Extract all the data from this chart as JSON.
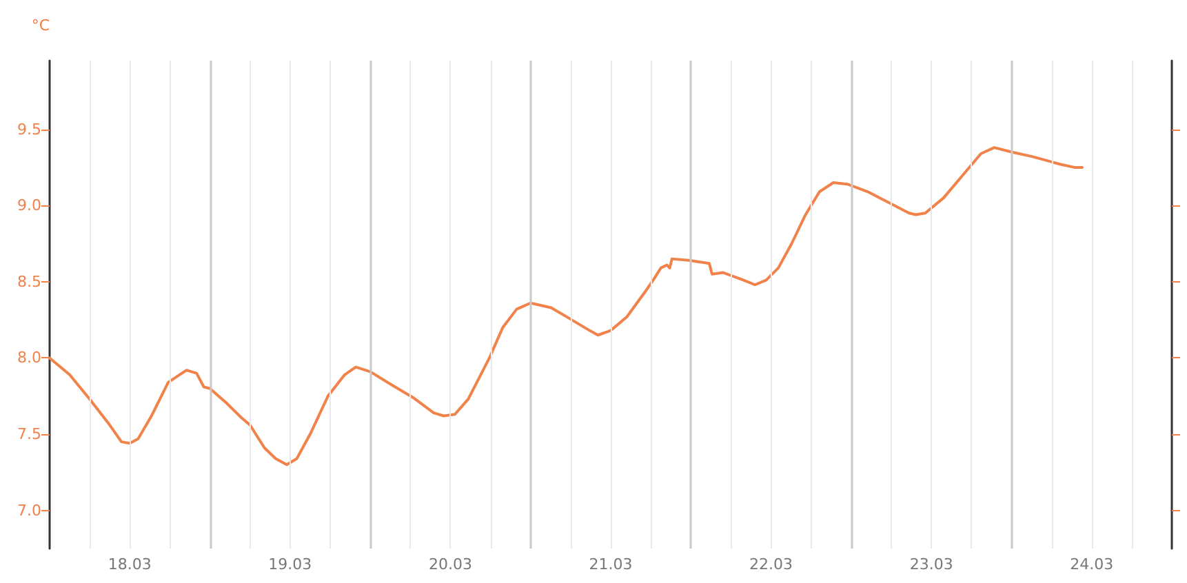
{
  "chart_data": {
    "type": "line",
    "ylabel": "°C",
    "line_style": "solid",
    "marker": "none",
    "grid": "x",
    "xlim": [
      "--03-17T12:00",
      "--03-24T12:00"
    ],
    "xticks": [
      {
        "value": "--03-17T18:00",
        "label": null
      },
      {
        "value": "--03-18T00:00",
        "label": "18.03"
      },
      {
        "value": "--03-18T06:00",
        "label": null
      },
      {
        "value": "--03-18T18:00",
        "label": null
      },
      {
        "value": "--03-19T00:00",
        "label": "19.03"
      },
      {
        "value": "--03-19T06:00",
        "label": null
      },
      {
        "value": "--03-19T18:00",
        "label": null
      },
      {
        "value": "--03-20T00:00",
        "label": "20.03"
      },
      {
        "value": "--03-20T06:00",
        "label": null
      },
      {
        "value": "--03-20T18:00",
        "label": null
      },
      {
        "value": "--03-21T00:00",
        "label": "21.03"
      },
      {
        "value": "--03-21T06:00",
        "label": null
      },
      {
        "value": "--03-21T18:00",
        "label": null
      },
      {
        "value": "--03-22T00:00",
        "label": "22.03"
      },
      {
        "value": "--03-22T06:00",
        "label": null
      },
      {
        "value": "--03-22T18:00",
        "label": null
      },
      {
        "value": "--03-23T00:00",
        "label": "23.03"
      },
      {
        "value": "--03-23T06:00",
        "label": null
      },
      {
        "value": "--03-23T18:00",
        "label": null
      },
      {
        "value": "--03-24T00:00",
        "label": "24.03"
      },
      {
        "value": "--03-24T06:00",
        "label": null
      }
    ],
    "ylim": [
      6.75,
      9.95
    ],
    "yticks": [
      {
        "value": 7,
        "label": "7.0"
      },
      {
        "value": 7.5,
        "label": "7.5"
      },
      {
        "value": 8,
        "label": "8.0"
      },
      {
        "value": 8.5,
        "label": "8.5"
      },
      {
        "value": 9,
        "label": "9.0"
      },
      {
        "value": 9.5,
        "label": "9.5"
      }
    ],
    "ref_lines": [
      {
        "axis": "x",
        "value": "--03-18T12:00",
        "color": "#c8c8c8"
      },
      {
        "axis": "x",
        "value": "--03-19T12:00",
        "color": "#c8c8c8"
      },
      {
        "axis": "x",
        "value": "--03-20T12:00",
        "color": "#c8c8c8"
      },
      {
        "axis": "x",
        "value": "--03-21T12:00",
        "color": "#c8c8c8"
      },
      {
        "axis": "x",
        "value": "--03-22T12:00",
        "color": "#c8c8c8"
      },
      {
        "axis": "x",
        "value": "--03-23T12:00",
        "color": "#c8c8c8"
      }
    ],
    "x": [
      "--03-17T12:00",
      "--03-17T15:00",
      "--03-17T18:00",
      "--03-17T21:00",
      "--03-17T22:45",
      "--03-18T00:00",
      "--03-18T01:15",
      "--03-18T03:15",
      "--03-18T05:45",
      "--03-18T08:30",
      "--03-18T10:00",
      "--03-18T11:05",
      "--03-18T12:00",
      "--03-18T14:35",
      "--03-18T16:40",
      "--03-18T18:00",
      "--03-18T20:10",
      "--03-18T21:50",
      "--03-18T23:30",
      "--03-19T01:00",
      "--03-19T03:00",
      "--03-19T05:40",
      "--03-19T08:10",
      "--03-19T09:50",
      "--03-19T12:00",
      "--03-19T15:20",
      "--03-19T18:25",
      "--03-19T21:30",
      "--03-19T23:00",
      "--03-20T00:40",
      "--03-20T02:40",
      "--03-20T05:50",
      "--03-20T07:50",
      "--03-20T09:55",
      "--03-20T12:00",
      "--03-20T15:05",
      "--03-20T18:10",
      "--03-20T20:50",
      "--03-20T22:05",
      "--03-21T00:00",
      "--03-21T02:25",
      "--03-21T05:05",
      "--03-21T06:30",
      "--03-21T07:30",
      "--03-21T08:25",
      "--03-21T08:50",
      "--03-21T09:10",
      "--03-21T11:40",
      "--03-21T14:45",
      "--03-21T15:10",
      "--03-21T16:50",
      "--03-21T19:55",
      "--03-21T21:35",
      "--03-21T23:15",
      "--03-22T01:05",
      "--03-22T03:05",
      "--03-22T05:10",
      "--03-22T07:15",
      "--03-22T09:20",
      "--03-22T11:25",
      "--03-22T14:30",
      "--03-22T17:35",
      "--03-22T20:40",
      "--03-22T21:40",
      "--03-22T23:05",
      "--03-23T01:50",
      "--03-23T04:55",
      "--03-23T07:25",
      "--03-23T09:25",
      "--03-23T12:05",
      "--03-23T15:10",
      "--03-23T19:20",
      "--03-23T21:25",
      "--03-23T22:35"
    ],
    "series": [
      {
        "color": "#f0824a",
        "values": [
          8.0,
          7.89,
          7.73,
          7.56,
          7.45,
          7.44,
          7.47,
          7.62,
          7.84,
          7.92,
          7.9,
          7.81,
          7.8,
          7.7,
          7.61,
          7.56,
          7.41,
          7.34,
          7.3,
          7.34,
          7.5,
          7.75,
          7.89,
          7.94,
          7.91,
          7.82,
          7.74,
          7.64,
          7.62,
          7.63,
          7.73,
          8.0,
          8.2,
          8.32,
          8.36,
          8.33,
          8.25,
          8.18,
          8.15,
          8.18,
          8.27,
          8.43,
          8.52,
          8.59,
          8.61,
          8.59,
          8.65,
          8.64,
          8.62,
          8.55,
          8.56,
          8.51,
          8.48,
          8.51,
          8.59,
          8.75,
          8.94,
          9.09,
          9.15,
          9.14,
          9.09,
          9.02,
          8.95,
          8.94,
          8.95,
          9.05,
          9.21,
          9.34,
          9.38,
          9.35,
          9.32,
          9.27,
          9.25,
          9.25
        ]
      }
    ]
  }
}
